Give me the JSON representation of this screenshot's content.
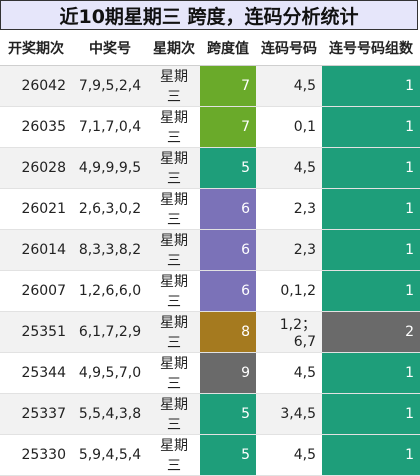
{
  "title": "近10期星期三 跨度，连码分析统计",
  "headers": [
    "开奖期次",
    "中奖号",
    "星期次",
    "跨度值",
    "连码号码",
    "连号号码组数"
  ],
  "rows": [
    {
      "issue": "26042",
      "numbers": "7,9,5,2,4",
      "weekday": "星期三",
      "span": "7",
      "span_color": "#6aaa2a",
      "consecutive": "4,5",
      "groups": "1",
      "groups_color": "#1e9e7a"
    },
    {
      "issue": "26035",
      "numbers": "7,1,7,0,4",
      "weekday": "星期三",
      "span": "7",
      "span_color": "#6aaa2a",
      "consecutive": "0,1",
      "groups": "1",
      "groups_color": "#1e9e7a"
    },
    {
      "issue": "26028",
      "numbers": "4,9,9,9,5",
      "weekday": "星期三",
      "span": "5",
      "span_color": "#1e9e7a",
      "consecutive": "4,5",
      "groups": "1",
      "groups_color": "#1e9e7a"
    },
    {
      "issue": "26021",
      "numbers": "2,6,3,0,2",
      "weekday": "星期三",
      "span": "6",
      "span_color": "#7b72b8",
      "consecutive": "2,3",
      "groups": "1",
      "groups_color": "#1e9e7a"
    },
    {
      "issue": "26014",
      "numbers": "8,3,3,8,2",
      "weekday": "星期三",
      "span": "6",
      "span_color": "#7b72b8",
      "consecutive": "2,3",
      "groups": "1",
      "groups_color": "#1e9e7a"
    },
    {
      "issue": "26007",
      "numbers": "1,2,6,6,0",
      "weekday": "星期三",
      "span": "6",
      "span_color": "#7b72b8",
      "consecutive": "0,1,2",
      "groups": "1",
      "groups_color": "#1e9e7a"
    },
    {
      "issue": "25351",
      "numbers": "6,1,7,2,9",
      "weekday": "星期三",
      "span": "8",
      "span_color": "#a57a1f",
      "consecutive": "1,2；6,7",
      "groups": "2",
      "groups_color": "#6a6a6a"
    },
    {
      "issue": "25344",
      "numbers": "4,9,5,7,0",
      "weekday": "星期三",
      "span": "9",
      "span_color": "#6a6a6a",
      "consecutive": "4,5",
      "groups": "1",
      "groups_color": "#1e9e7a"
    },
    {
      "issue": "25337",
      "numbers": "5,5,4,3,8",
      "weekday": "星期三",
      "span": "5",
      "span_color": "#1e9e7a",
      "consecutive": "3,4,5",
      "groups": "1",
      "groups_color": "#1e9e7a"
    },
    {
      "issue": "25330",
      "numbers": "5,9,4,5,4",
      "weekday": "星期三",
      "span": "5",
      "span_color": "#1e9e7a",
      "consecutive": "4,5",
      "groups": "1",
      "groups_color": "#1e9e7a"
    }
  ]
}
